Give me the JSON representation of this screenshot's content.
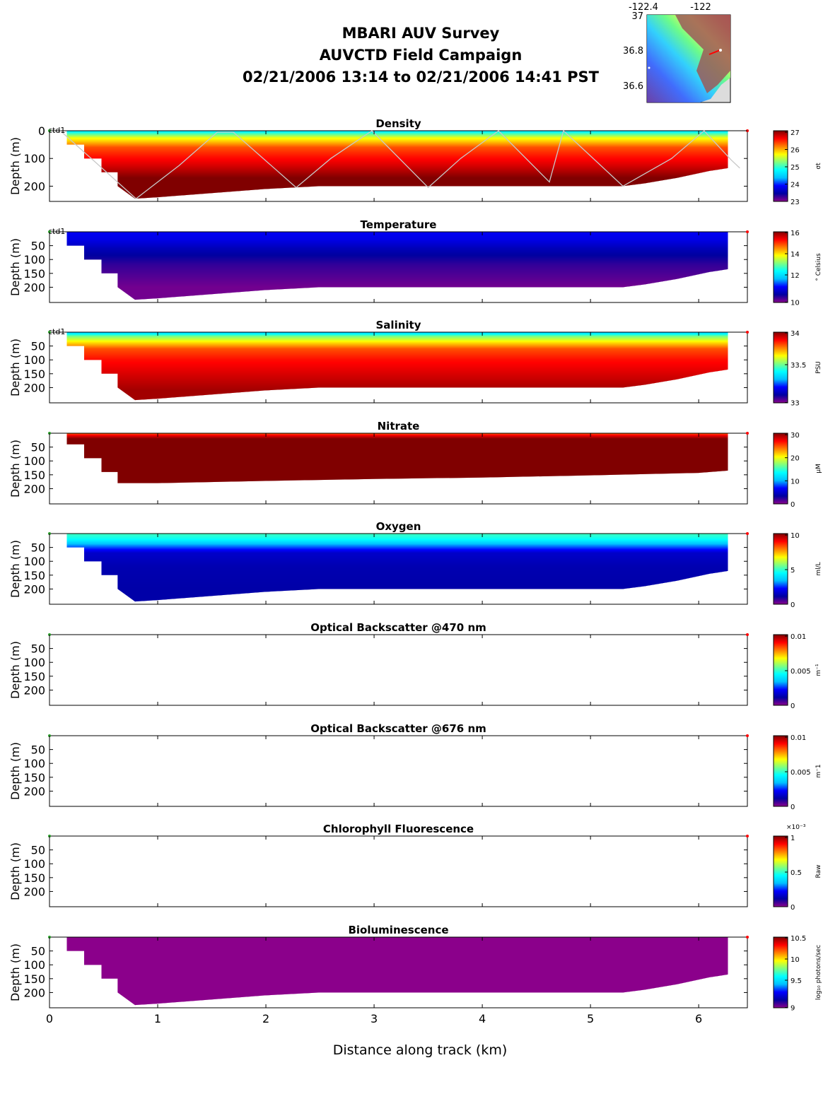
{
  "title": {
    "line1": "MBARI AUV Survey",
    "line2": "AUVCTD Field Campaign",
    "line3": "02/21/2006 13:14  to 02/21/2006 14:41 PST"
  },
  "inset_map": {
    "lon_ticks": [
      "-122.4",
      "-122"
    ],
    "lat_ticks": [
      "37",
      "36.8",
      "36.6"
    ]
  },
  "colors": {
    "jet": [
      "#8b008b",
      "#0000a0",
      "#0000ff",
      "#00c0ff",
      "#00ffff",
      "#80ff80",
      "#ffff00",
      "#ff8000",
      "#ff0000",
      "#800000"
    ],
    "track": "#c8c8c8",
    "start_marker": "#2ca02c",
    "end_marker": "#ff0000"
  },
  "chart_data": {
    "type": "heatmap",
    "xlabel": "Distance along track (km)",
    "ylabel": "Depth (m)",
    "xlim": [
      0,
      6.45
    ],
    "x_ticks": [
      "0",
      "1",
      "2",
      "3",
      "4",
      "5",
      "6"
    ],
    "ylim": [
      0,
      255
    ],
    "section_bottom": {
      "x": [
        0.16,
        0.16,
        0.32,
        0.32,
        0.48,
        0.48,
        0.63,
        0.63,
        0.79,
        1.0,
        1.5,
        2.0,
        2.5,
        3.0,
        3.5,
        4.0,
        4.5,
        5.0,
        5.3,
        5.5,
        5.8,
        6.1,
        6.27
      ],
      "depth": [
        0,
        50,
        50,
        100,
        100,
        150,
        150,
        200,
        245,
        240,
        225,
        210,
        200,
        200,
        200,
        200,
        200,
        200,
        200,
        190,
        170,
        145,
        135
      ]
    },
    "vehicle_track": {
      "label": "ctd1",
      "x": [
        0.1,
        0.8,
        1.2,
        1.55,
        1.7,
        2.28,
        2.6,
        2.98,
        3.5,
        3.8,
        4.15,
        4.62,
        4.75,
        5.3,
        5.75,
        6.05,
        6.3,
        6.38
      ],
      "depth": [
        0,
        245,
        125,
        5,
        5,
        205,
        100,
        0,
        205,
        100,
        0,
        185,
        0,
        200,
        100,
        0,
        105,
        135
      ]
    },
    "panels": [
      {
        "title": "Density",
        "y_ticks": [
          "0",
          "100",
          "200"
        ],
        "cbar_label": "σt",
        "cbar_ticks": [
          "27",
          "26",
          "25",
          "24",
          "23"
        ],
        "profile": [
          [
            0,
            0.4
          ],
          [
            15,
            0.55
          ],
          [
            25,
            0.65
          ],
          [
            40,
            0.72
          ],
          [
            60,
            0.82
          ],
          [
            90,
            0.87
          ],
          [
            130,
            0.93
          ],
          [
            170,
            1.0
          ]
        ],
        "has_data": true,
        "show_track": true,
        "track_label": true
      },
      {
        "title": "Temperature",
        "y_ticks": [
          "50",
          "100",
          "150",
          "200"
        ],
        "cbar_label": "° Celsius",
        "cbar_ticks": [
          "16",
          "14",
          "12",
          "10"
        ],
        "profile": [
          [
            0,
            0.21
          ],
          [
            30,
            0.19
          ],
          [
            60,
            0.14
          ],
          [
            120,
            0.07
          ],
          [
            200,
            0.02
          ]
        ],
        "has_data": true,
        "show_track": false,
        "track_label": true
      },
      {
        "title": "Salinity",
        "y_ticks": [
          "50",
          "100",
          "150",
          "200"
        ],
        "cbar_label": "PSU",
        "cbar_ticks": [
          "34",
          "33.5",
          "33"
        ],
        "profile": [
          [
            0,
            0.35
          ],
          [
            15,
            0.55
          ],
          [
            35,
            0.68
          ],
          [
            60,
            0.82
          ],
          [
            100,
            0.88
          ],
          [
            160,
            0.93
          ],
          [
            210,
            0.97
          ]
        ],
        "has_data": true,
        "show_track": false,
        "track_label": true
      },
      {
        "title": "Nitrate",
        "y_ticks": [
          "50",
          "100",
          "150",
          "200"
        ],
        "cbar_label": "µM",
        "cbar_ticks": [
          "30",
          "20",
          "10",
          "0"
        ],
        "profile": [
          [
            0,
            0.8
          ],
          [
            8,
            0.9
          ],
          [
            20,
            1.0
          ],
          [
            250,
            1.0
          ]
        ],
        "has_data": true,
        "show_track": false,
        "track_label": false,
        "bottom_override": {
          "x": [
            0.16,
            0.16,
            0.32,
            0.32,
            0.48,
            0.48,
            0.63,
            0.63,
            1.0,
            2.0,
            3.0,
            4.0,
            5.0,
            6.0,
            6.27
          ],
          "depth": [
            0,
            40,
            40,
            90,
            90,
            140,
            140,
            180,
            180,
            172,
            165,
            160,
            152,
            143,
            135
          ]
        }
      },
      {
        "title": "Oxygen",
        "y_ticks": [
          "50",
          "100",
          "150",
          "200"
        ],
        "cbar_label": "ml/L",
        "cbar_ticks": [
          "10",
          "5",
          "0"
        ],
        "profile": [
          [
            0,
            0.5
          ],
          [
            20,
            0.45
          ],
          [
            40,
            0.32
          ],
          [
            70,
            0.16
          ],
          [
            120,
            0.13
          ],
          [
            200,
            0.12
          ]
        ],
        "has_data": true,
        "show_track": false,
        "track_label": false
      },
      {
        "title": "Optical Backscatter @470 nm",
        "y_ticks": [
          "50",
          "100",
          "150",
          "200"
        ],
        "cbar_label": "m⁻¹",
        "cbar_ticks": [
          "0.01",
          "0.005",
          "0"
        ],
        "has_data": false,
        "show_track": false,
        "track_label": false
      },
      {
        "title": "Optical Backscatter @676 nm",
        "y_ticks": [
          "50",
          "100",
          "150",
          "200"
        ],
        "cbar_label": "m⁻1",
        "cbar_ticks": [
          "0.01",
          "0.005",
          "0"
        ],
        "has_data": false,
        "show_track": false,
        "track_label": false
      },
      {
        "title": "Chlorophyll Fluorescence",
        "y_ticks": [
          "50",
          "100",
          "150",
          "200"
        ],
        "cbar_label": "Raw",
        "cbar_ticks": [
          "1",
          "0.5",
          "0"
        ],
        "cbar_exponent": "×10⁻³",
        "has_data": false,
        "show_track": false,
        "track_label": false
      },
      {
        "title": "Bioluminescence",
        "y_ticks": [
          "50",
          "100",
          "150",
          "200"
        ],
        "cbar_label": "log₁₀ photons/sec",
        "cbar_ticks": [
          "10.5",
          "10",
          "9.5",
          "9"
        ],
        "profile": [
          [
            0,
            0.0
          ],
          [
            250,
            0.0
          ]
        ],
        "has_data": true,
        "show_track": false,
        "track_label": false
      }
    ]
  }
}
